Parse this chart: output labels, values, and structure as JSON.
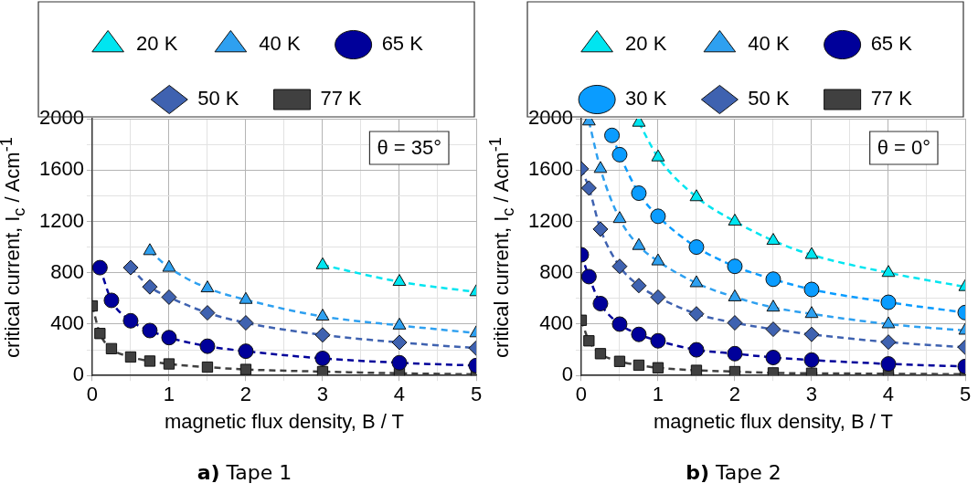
{
  "chart_data": [
    {
      "type": "line",
      "title": "a) Tape 1",
      "xlabel": "magnetic flux density, B / T",
      "ylabel": "critical current, I$_{c}$ / Acm$^{-1}$",
      "xlim": [
        0,
        5
      ],
      "ylim": [
        0,
        2000
      ],
      "xticks": [
        0,
        {
          "value": 0.5,
          "label": null
        },
        1,
        {
          "value": 1.5,
          "label": null
        },
        2,
        {
          "value": 2.5,
          "label": null
        },
        3,
        {
          "value": 3.5,
          "label": null
        },
        4,
        {
          "value": 4.5,
          "label": null
        },
        5
      ],
      "yticks": [
        0,
        {
          "value": 200,
          "label": null
        },
        400,
        {
          "value": 600,
          "label": null
        },
        800,
        {
          "value": 1000,
          "label": null
        },
        1200,
        {
          "value": 1400,
          "label": null
        },
        1600,
        {
          "value": 1800,
          "label": null
        },
        2000
      ],
      "grid": true,
      "legend": "top",
      "line_style": "dashed",
      "annotations": [
        "θ = 35°"
      ],
      "series": [
        {
          "name": "20 K",
          "color": "#00e5f0",
          "marker": "triangle",
          "x": [
            3,
            4,
            5
          ],
          "values": [
            860,
            730,
            650
          ]
        },
        {
          "name": "40 K",
          "color": "#2ea0f0",
          "marker": "triangle",
          "x": [
            0.75,
            1,
            1.5,
            2,
            3,
            4,
            5
          ],
          "values": [
            970,
            840,
            680,
            590,
            460,
            390,
            330
          ]
        },
        {
          "name": "65 K",
          "color": "#00009a",
          "marker": "circle",
          "x": [
            0.1,
            0.25,
            0.5,
            0.75,
            1,
            1.5,
            2,
            3,
            4,
            5
          ],
          "values": [
            840,
            585,
            426,
            350,
            295,
            228,
            189,
            133,
            99,
            77
          ]
        },
        {
          "name": "50 K",
          "color": "#3f62b0",
          "marker": "diamond",
          "x": [
            0.5,
            0.75,
            1,
            1.5,
            2,
            3,
            4,
            5
          ],
          "values": [
            840,
            690,
            610,
            488,
            410,
            316,
            258,
            213
          ]
        },
        {
          "name": "77 K",
          "color": "#404040",
          "marker": "square",
          "x": [
            0,
            0.1,
            0.25,
            0.5,
            0.75,
            1,
            1.5,
            2,
            3,
            4,
            5
          ],
          "values": [
            542,
            327,
            209,
            144,
            112,
            90,
            65,
            47,
            30,
            17,
            9
          ]
        }
      ]
    },
    {
      "type": "line",
      "title": "b) Tape 2",
      "xlabel": "magnetic flux density, B / T",
      "ylabel": "critical current, I$_{c}$ / Acm$^{-1}$",
      "xlim": [
        0,
        5
      ],
      "ylim": [
        0,
        2000
      ],
      "xticks": [
        0,
        {
          "value": 0.5,
          "label": null
        },
        1,
        {
          "value": 1.5,
          "label": null
        },
        2,
        {
          "value": 2.5,
          "label": null
        },
        3,
        {
          "value": 3.5,
          "label": null
        },
        4,
        {
          "value": 4.5,
          "label": null
        },
        5
      ],
      "yticks": [
        0,
        {
          "value": 200,
          "label": null
        },
        400,
        {
          "value": 600,
          "label": null
        },
        800,
        {
          "value": 1000,
          "label": null
        },
        1200,
        {
          "value": 1400,
          "label": null
        },
        1600,
        {
          "value": 1800,
          "label": null
        },
        2000
      ],
      "grid": true,
      "legend": "top",
      "line_style": "dashed",
      "annotations": [
        "θ = 0°"
      ],
      "series": [
        {
          "name": "20 K",
          "color": "#00e5f0",
          "marker": "triangle",
          "x": [
            0.75,
            1,
            1.5,
            2,
            2.5,
            3,
            4,
            5
          ],
          "values": [
            1970,
            1700,
            1390,
            1200,
            1050,
            940,
            800,
            690
          ]
        },
        {
          "name": "40 K",
          "color": "#2ea0f0",
          "marker": "triangle",
          "x": [
            0.1,
            0.25,
            0.5,
            0.75,
            1,
            1.5,
            2,
            2.5,
            3,
            4,
            5
          ],
          "values": [
            1980,
            1610,
            1220,
            1010,
            890,
            720,
            610,
            530,
            480,
            400,
            350
          ]
        },
        {
          "name": "65 K",
          "color": "#00009a",
          "marker": "circle",
          "x": [
            0,
            0.1,
            0.25,
            0.5,
            0.75,
            1,
            1.5,
            2,
            2.5,
            3,
            4,
            5
          ],
          "values": [
            940,
            770,
            560,
            400,
            320,
            270,
            200,
            170,
            140,
            120,
            90,
            70
          ]
        },
        {
          "name": "30 K",
          "color": "#0a9cff",
          "marker": "circle",
          "x": [
            0.4,
            0.5,
            0.75,
            1,
            1.5,
            2,
            2.5,
            3,
            4,
            5
          ],
          "values": [
            1870,
            1720,
            1420,
            1240,
            1000,
            850,
            750,
            670,
            570,
            490
          ]
        },
        {
          "name": "50 K",
          "color": "#3f62b0",
          "marker": "diamond",
          "x": [
            0,
            0.1,
            0.25,
            0.5,
            0.75,
            1,
            1.5,
            2,
            2.5,
            3,
            4,
            5
          ],
          "values": [
            1610,
            1460,
            1140,
            850,
            700,
            610,
            480,
            410,
            360,
            320,
            260,
            220
          ]
        },
        {
          "name": "77 K",
          "color": "#404040",
          "marker": "square",
          "x": [
            0,
            0.1,
            0.25,
            0.5,
            0.75,
            1,
            1.5,
            2,
            2.5,
            3,
            4,
            5
          ],
          "values": [
            430,
            270,
            170,
            110,
            80,
            60,
            40,
            30,
            20,
            17,
            13,
            10
          ]
        }
      ]
    }
  ]
}
